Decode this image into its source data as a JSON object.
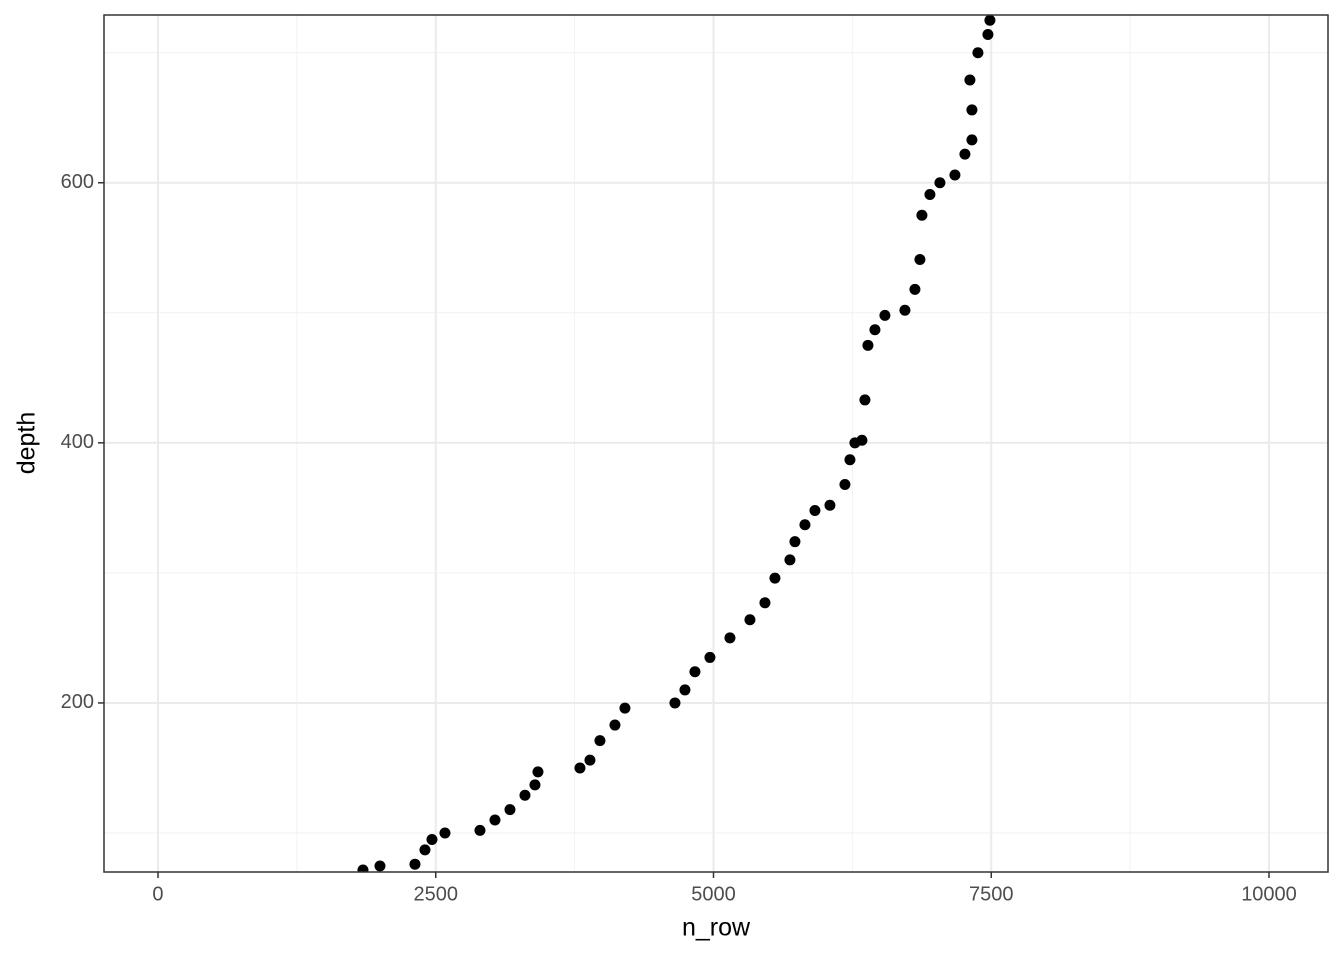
{
  "chart_data": {
    "type": "scatter",
    "x_label": "n_row",
    "y_label": "depth",
    "color": "#000000",
    "xlim": [
      -486,
      10531
    ],
    "ylim": [
      70,
      729
    ],
    "xticks": [
      0,
      2500,
      5000,
      7500,
      10000
    ],
    "yticks": [
      200,
      400,
      600
    ],
    "grid": true,
    "x": [
      1845,
      1998,
      2313,
      2403,
      2466,
      2583,
      2898,
      3033,
      3168,
      3303,
      3393,
      3420,
      3798,
      3888,
      3978,
      4113,
      4203,
      4653,
      4743,
      4833,
      4968,
      5148,
      5328,
      5463,
      5553,
      5688,
      5733,
      5823,
      5913,
      6048,
      6183,
      6228,
      6273,
      6336,
      6363,
      6390,
      6453,
      6543,
      6723,
      6813,
      6858,
      6876,
      6948,
      7038,
      7173,
      7263,
      7326,
      7326,
      7308,
      7380,
      7470,
      7488
    ],
    "values": [
      71.5,
      74.6,
      76,
      87,
      95,
      100,
      102,
      110,
      118,
      129,
      137,
      147,
      150,
      156,
      171,
      183,
      196,
      200,
      210,
      224,
      235,
      250,
      264,
      277,
      296,
      310,
      324,
      337,
      348,
      352,
      368,
      387,
      400,
      402,
      433,
      475,
      487,
      498,
      502,
      518,
      541,
      575,
      591,
      600,
      606,
      622,
      633,
      656,
      679,
      700,
      714,
      725
    ]
  }
}
